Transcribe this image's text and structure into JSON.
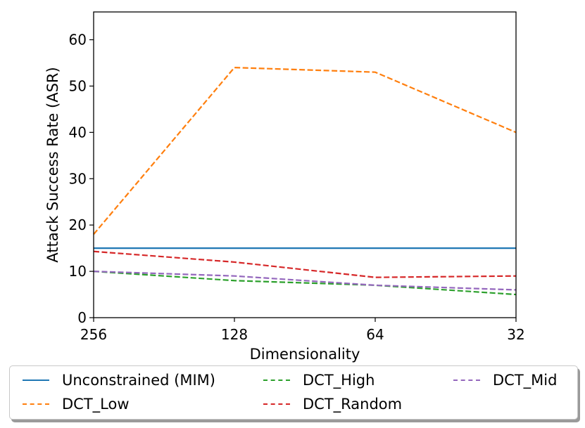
{
  "chart_data": {
    "type": "line",
    "xlabel": "Dimensionality",
    "ylabel": "Attack Success Rate (ASR)",
    "categories": [
      "256",
      "128",
      "64",
      "32"
    ],
    "ylim": [
      0,
      66
    ],
    "yticks": [
      "0",
      "10",
      "20",
      "30",
      "40",
      "50",
      "60"
    ],
    "grid": false,
    "legend_position": "below",
    "series": [
      {
        "name": "Unconstrained (MIM)",
        "values": [
          15,
          15,
          15,
          15
        ],
        "color": "#1f77b4",
        "style": "solid"
      },
      {
        "name": "DCT_Low",
        "values": [
          18,
          54,
          53,
          40
        ],
        "color": "#ff7f0e",
        "style": "dashed"
      },
      {
        "name": "DCT_High",
        "values": [
          10,
          8,
          7,
          5
        ],
        "color": "#2ca02c",
        "style": "dashed"
      },
      {
        "name": "DCT_Random",
        "values": [
          14.3,
          12,
          8.7,
          9
        ],
        "color": "#d62728",
        "style": "dashed"
      },
      {
        "name": "DCT_Mid",
        "values": [
          10,
          9,
          7,
          6
        ],
        "color": "#9467bd",
        "style": "dashed"
      }
    ]
  }
}
